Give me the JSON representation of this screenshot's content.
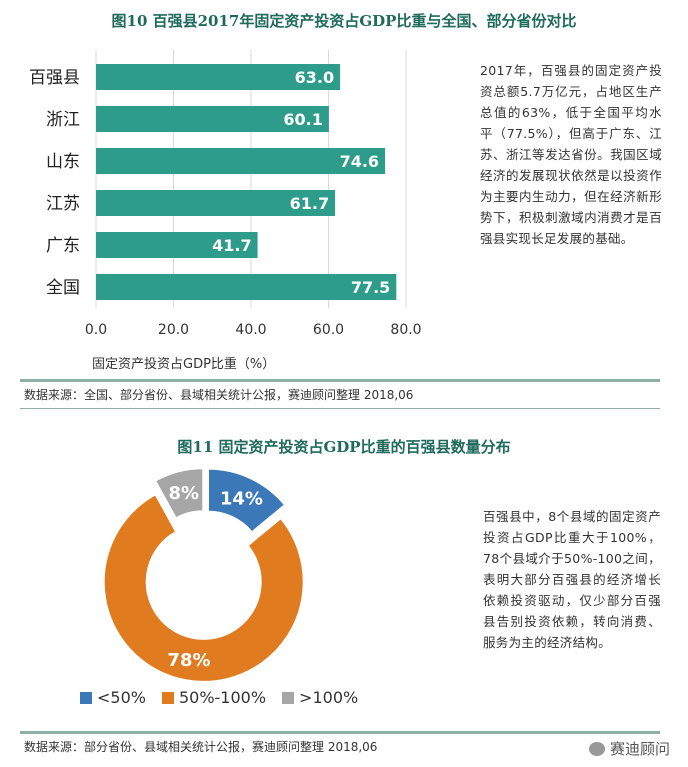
{
  "figure1": {
    "title": "图10  百强县2017年固定资产投资占GDP比重与全国、部分省份对比",
    "side_text": "2017年，百强县的固定资产投资总额5.7万亿元，占地区生产总值的63%，低于全国平均水平（77.5%），但高于广东、江苏、浙江等发达省份。我国区域经济的发展现状依然是以投资作为主要内生动力，但在经济新形势下，积极刺激域内消费才是百强县实现长足发展的基础。",
    "source": "数据来源：全国、部分省份、县域相关统计公报，赛迪顾问整理      2018,06"
  },
  "figure2": {
    "title": "图11  固定资产投资占GDP比重的百强县数量分布",
    "side_text": "百强县中，8个县域的固定资产投资占GDP比重大于100%，78个县域介于50%-100之间，表明大部分百强县的经济增长依赖投资驱动，仅少部分百强县告别投资依赖，转向消费、服务为主的经济结构。",
    "source": "数据来源：部分省份、县域相关统计公报，赛迪顾问整理      2018,06"
  },
  "watermark": "赛迪顾问",
  "chart_data": [
    {
      "type": "bar",
      "orientation": "horizontal",
      "categories": [
        "百强县",
        "浙江",
        "山东",
        "江苏",
        "广东",
        "全国"
      ],
      "values": [
        63.0,
        60.1,
        74.6,
        61.7,
        41.7,
        77.5
      ],
      "value_labels": [
        "63.0",
        "60.1",
        "74.6",
        "61.7",
        "41.7",
        "77.5"
      ],
      "xlabel": "固定资产投资占GDP比重（%）",
      "xlim": [
        0,
        80
      ],
      "xticks": [
        "0.0",
        "20.0",
        "40.0",
        "60.0",
        "80.0"
      ],
      "grid": true,
      "color": "#2e9c8a"
    },
    {
      "type": "pie",
      "donut": true,
      "categories": [
        "<50%",
        "50%-100%",
        ">100%"
      ],
      "values": [
        14,
        78,
        8
      ],
      "value_labels": [
        "14%",
        "78%",
        "8%"
      ],
      "colors": [
        "#3a78b8",
        "#e07b1f",
        "#a6a6a6"
      ],
      "legend": "bottom"
    }
  ]
}
